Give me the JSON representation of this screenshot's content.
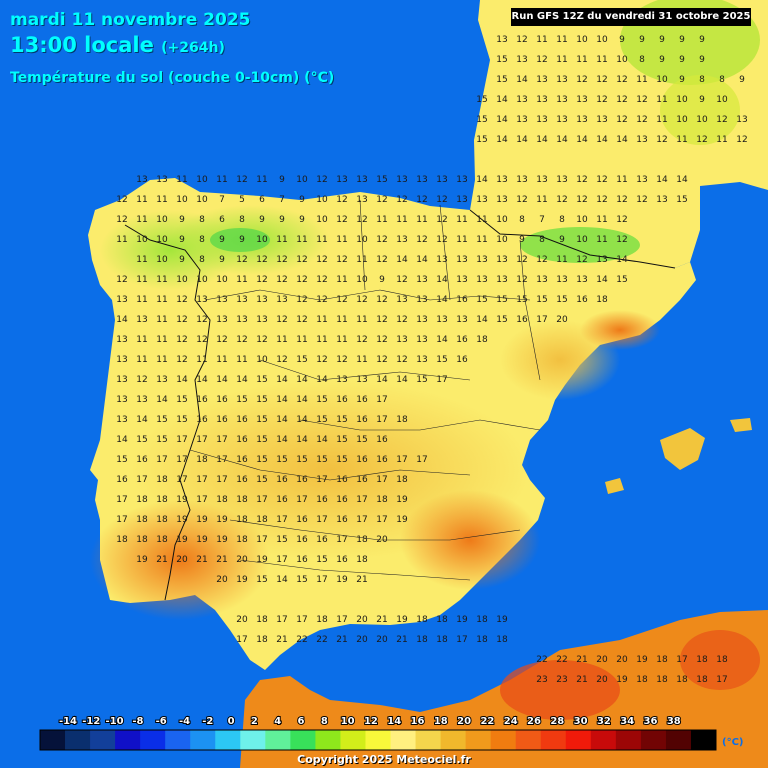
{
  "header": {
    "date": "mardi 11 novembre 2025",
    "time": "13:00 locale",
    "offset": "(+264h)",
    "parameter": "Température du sol (couche 0-10cm) (°C)",
    "run": "Run GFS 12Z du vendredi 31 octobre 2025"
  },
  "legend": {
    "labels": [
      "-14",
      "-12",
      "-10",
      "-8",
      "-6",
      "-4",
      "-2",
      "0",
      "2",
      "4",
      "6",
      "8",
      "10",
      "12",
      "14",
      "16",
      "18",
      "20",
      "22",
      "24",
      "26",
      "28",
      "30",
      "32",
      "34",
      "36",
      "38"
    ],
    "colors": [
      "#05123a",
      "#0a2f6e",
      "#123f9a",
      "#1010c8",
      "#0a2ee8",
      "#1a64f0",
      "#1c92f2",
      "#2cc8f4",
      "#6ef0ea",
      "#60f09a",
      "#38e05a",
      "#8ee81c",
      "#d2ee1a",
      "#f8f83a",
      "#fff080",
      "#f4d64c",
      "#f0b82c",
      "#f09a1c",
      "#f07c10",
      "#f05a16",
      "#f03a10",
      "#f01a0a",
      "#c80a0a",
      "#9c0606",
      "#720404",
      "#520202",
      "#000000"
    ],
    "unit": "(°C)"
  },
  "colors": {
    "sea": "#0b6ee8",
    "land_cool": "#e4ee3a",
    "land_mild": "#fff07a",
    "land_warm": "#f2c53c",
    "land_hot": "#ee8a1a"
  },
  "copyright": "Copyright 2025 Meteociel.fr",
  "grid_values": [
    "13 12 11 11 10 10 9 9 9 9 9",
    "15 13 12 11 11 11 10 8 9 9 9",
    "15 14 13 13 12 12 12 11 10 9 8 8 9",
    "15 14 13 13 13 13 12 12 12 11 10 9 10",
    "15 14 13 13 13 13 13 12 12 11 10 10 12 13",
    "15 14 14 14 14 14 14 14 13 12 11 12 11 12 13 15",
    "13 13 11 10 11 12 11 9 10 12 13 13 15 13 13 13 13 14 13 13 13 13 12 12 11 13 14 14",
    "12 11 11 10 10 7 5 6 7 9 10 12 13 12 12 12 12 13 13 13 12 11 12 12 12 12 12 13 15",
    "12 11 10 9 8 6 8 9 9 9 10 12 12 11 11 11 12 11 11 10 8 7 8 10 11 12",
    "11 10 10 9 8 9 9 10 11 11 11 11 10 12 13 12 12 11 11 10 9 8 9 10 11 12",
    "11 10 9 8 9 12 12 12 12 12 12 11 12 14 14 13 13 13 13 12 12 11 12 13 14",
    "12 11 11 10 10 10 11 12 12 12 12 11 10 9 12 13 14 13 13 13 12 13 13 13 14 15",
    "13 11 11 12 13 13 13 13 13 12 12 12 12 12 13 13 14 16 15 15 15 15 15 16 18",
    "14 13 11 12 12 13 13 13 12 12 11 11 11 12 12 13 13 13 14 15 16 17 20",
    "13 11 11 12 12 12 12 12 11 11 11 11 12 12 13 13 14 16 18",
    "13 11 11 12 11 11 11 10 12 15 12 12 11 12 12 13 15 16",
    "13 12 13 14 14 14 14 15 14 14 14 13 13 14 14 15 17",
    "13 13 14 15 16 16 15 15 14 14 15 16 16 17",
    "13 14 15 15 16 16 16 15 14 14 15 15 16 17 18",
    "14 15 15 17 17 17 16 15 14 14 14 15 15 16",
    "15 16 17 17 18 17 16 15 15 15 15 15 16 16 17 17",
    "16 17 18 17 17 17 16 15 16 16 17 16 16 17 18",
    "17 18 18 19 17 18 18 17 16 17 16 16 17 18 19",
    "17 18 18 19 19 19 18 18 17 16 17 16 17 17 19",
    "18 18 18 19 19 19 18 17 15 16 16 17 18 20",
    "19 21 20 21 21 20 19 17 16 15 16 18",
    "20 19 15 14 15 17 19 21",
    "20 18 17 17 18 17 20 21 19 18 18 19 18 19",
    "17 18 21 22 22 21 20 20 21 18 18 17 18 18",
    "22 22 21 20 20 19 18 17 18 18",
    "23 23 21 20 19 18 18 18 18 17"
  ]
}
